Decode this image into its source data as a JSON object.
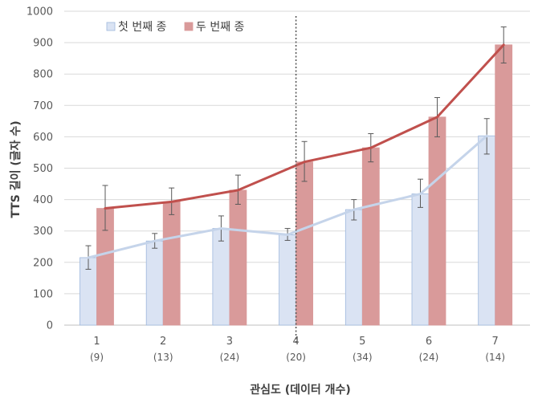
{
  "chart_data": {
    "type": "bar",
    "xlabel": "관심도 (데이터 개수)",
    "ylabel": "TTS 길이 (글자 수)",
    "ylim": [
      0,
      1000
    ],
    "yticks": [
      "0",
      "100",
      "200",
      "300",
      "400",
      "500",
      "600",
      "700",
      "800",
      "900",
      "1000"
    ],
    "categories": [
      "1",
      "2",
      "3",
      "4",
      "5",
      "6",
      "7"
    ],
    "category_sublabels": [
      "(9)",
      "(13)",
      "(24)",
      "(20)",
      "(34)",
      "(24)",
      "(14)"
    ],
    "reference_line_at_category": "4",
    "legend_position": "top-left",
    "series": [
      {
        "name": "첫 번째 종",
        "color": "#dae3f3",
        "border": "#9db7dc",
        "line_color": "#c5d4ea",
        "values": [
          215,
          268,
          308,
          288,
          368,
          418,
          603
        ],
        "error_low": [
          178,
          245,
          268,
          270,
          335,
          375,
          545
        ],
        "error_high": [
          253,
          292,
          348,
          308,
          400,
          465,
          658
        ]
      },
      {
        "name": "두 번째 종",
        "color": "#d99a9a",
        "border": "#d99a9a",
        "line_color": "#c0504d",
        "values": [
          372,
          393,
          430,
          520,
          565,
          663,
          893
        ],
        "error_low": [
          302,
          352,
          385,
          458,
          520,
          600,
          835
        ],
        "error_high": [
          445,
          437,
          478,
          585,
          610,
          725,
          950
        ]
      }
    ]
  }
}
